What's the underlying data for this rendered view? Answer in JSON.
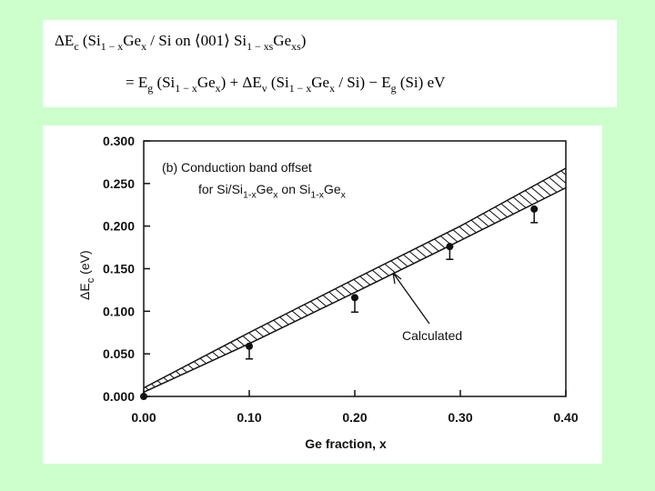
{
  "formula": {
    "lines": [
      [
        "ΔE",
        "c",
        " (Si",
        "1 − x",
        "Ge",
        "x",
        " / Si on ⟨001⟩ Si",
        "1 − xs",
        "Ge",
        "xs",
        ")"
      ],
      [
        "= E",
        "g",
        " (Si",
        "1 − x",
        "Ge",
        "x",
        ") + ΔE",
        "v",
        " (Si",
        "1 − x",
        "Ge",
        "x",
        " / Si) − E",
        "g",
        " (Si)  eV"
      ]
    ]
  },
  "chart_data": {
    "type": "band",
    "x_label": "Ge fraction, x",
    "y_label": [
      "ΔE",
      "c",
      " (eV)"
    ],
    "annotation": {
      "lines": [
        [
          "(b) Conduction band offset"
        ],
        [
          "for Si/Si",
          "1-x",
          "Ge",
          "x",
          " on Si",
          "1-x",
          "Ge",
          "x"
        ]
      ]
    },
    "band_label": "Calculated",
    "x": [
      0,
      0.1,
      0.2,
      0.3,
      0.4
    ],
    "series": [
      {
        "name": "upper",
        "values": [
          0.01,
          0.075,
          0.138,
          0.2,
          0.268
        ]
      },
      {
        "name": "lower",
        "values": [
          0.005,
          0.062,
          0.122,
          0.183,
          0.245
        ]
      }
    ],
    "points": {
      "x": [
        0,
        0.1,
        0.2,
        0.29,
        0.37
      ],
      "values": [
        0,
        0.059,
        0.116,
        0.176,
        0.22
      ],
      "lower_errors": [
        0,
        0.015,
        0.017,
        0.015,
        0.016
      ]
    },
    "xlim": [
      0,
      0.4
    ],
    "ylim": [
      0,
      0.3
    ],
    "xticks": [
      {
        "value": 0,
        "label": "0.00"
      },
      {
        "value": 0.1,
        "label": "0.10"
      },
      {
        "value": 0.2,
        "label": "0.20"
      },
      {
        "value": 0.3,
        "label": "0.30"
      },
      {
        "value": 0.4,
        "label": "0.40"
      }
    ],
    "yticks": [
      {
        "value": 0,
        "label": "0.000"
      },
      {
        "value": 0.05,
        "label": "0.050"
      },
      {
        "value": 0.1,
        "label": "0.100"
      },
      {
        "value": 0.15,
        "label": "0.150"
      },
      {
        "value": 0.2,
        "label": "0.200"
      },
      {
        "value": 0.25,
        "label": "0.250"
      },
      {
        "value": 0.3,
        "label": "0.300"
      }
    ]
  }
}
